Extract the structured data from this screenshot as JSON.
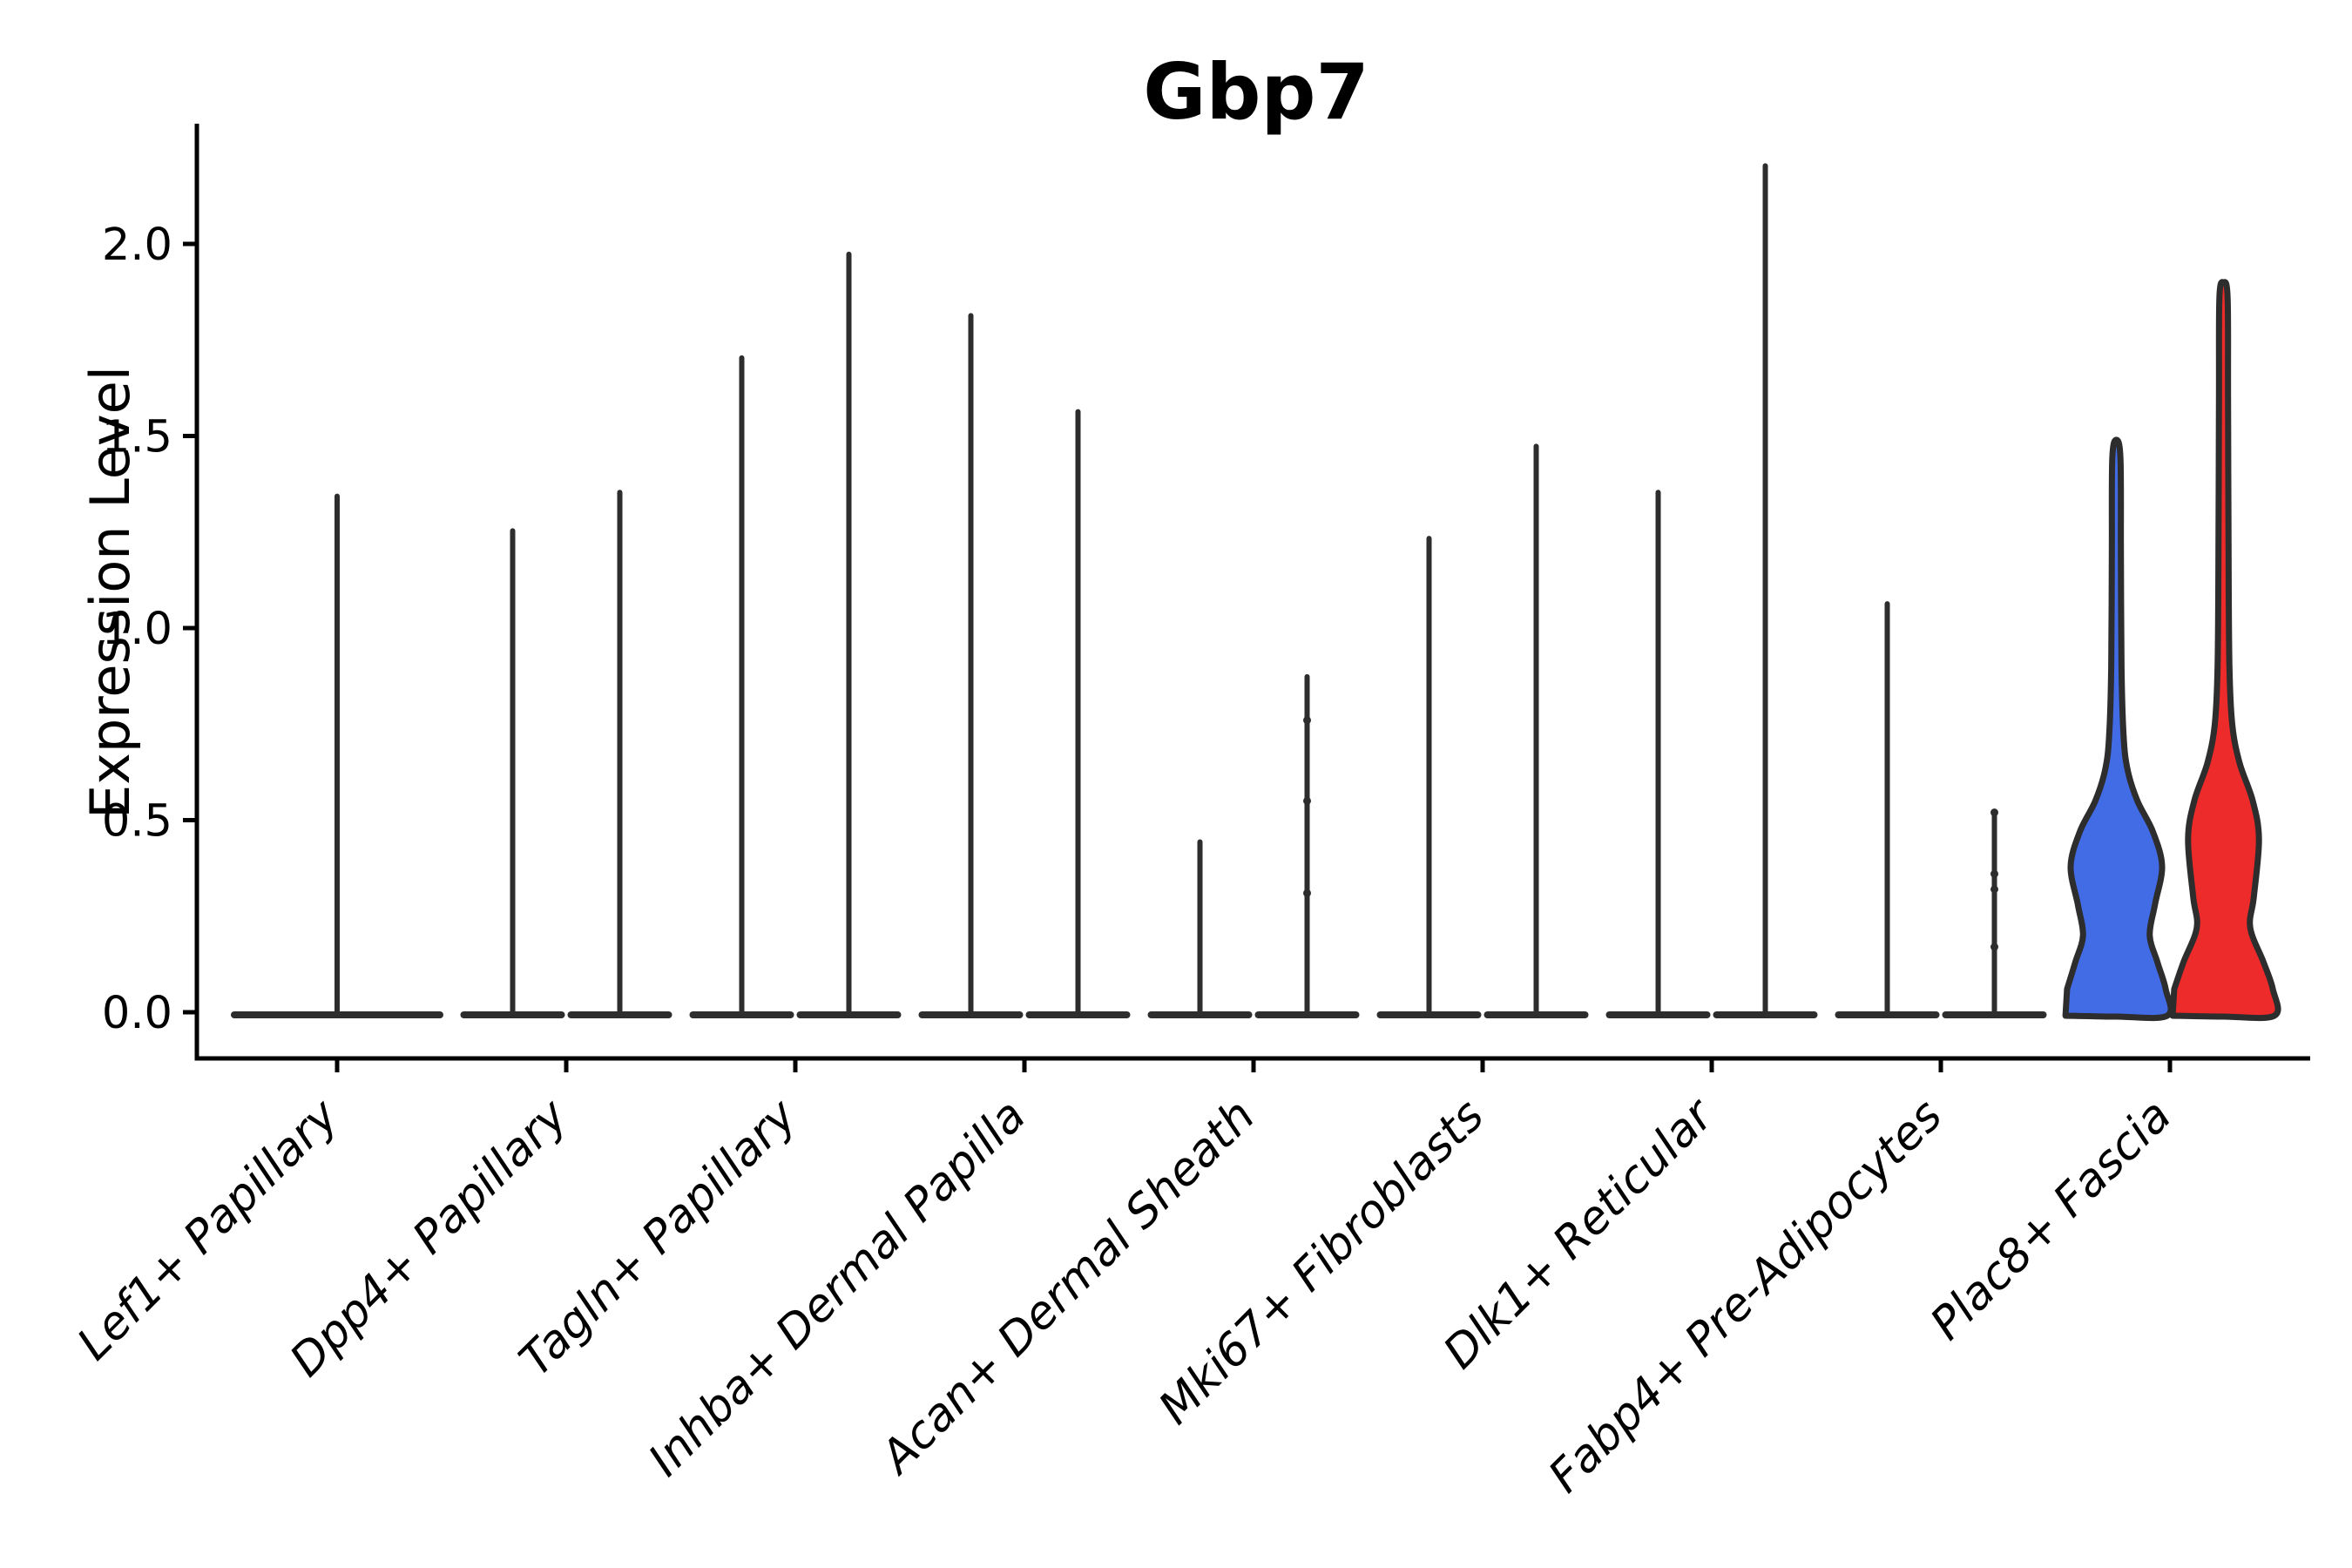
{
  "page": {
    "background": "#ffffff"
  },
  "chart_data": {
    "type": "violin",
    "title": "Gbp7",
    "ylabel": "Expression Level",
    "xlabel": "",
    "ytick_labels": [
      "0.0",
      "0.5",
      "1.0",
      "1.5",
      "2.0"
    ],
    "ytick_values": [
      0.0,
      0.5,
      1.0,
      1.5,
      2.0
    ],
    "ylim": [
      -0.12,
      2.31
    ],
    "grid": false,
    "legend": "none",
    "x_tick_style": "italic, rotated 45deg, anchored right",
    "colors": {
      "fascia_left": "#426BE6",
      "fascia_right": "#EE2B2B",
      "line": "#2D2D2D",
      "axis": "#000000"
    },
    "categories": [
      "Lef1+ Papillary",
      "Dpp4+ Papillary",
      "Tagln+ Papillary",
      "Inhba+ Dermal Papilla",
      "Acan+ Dermal Sheath",
      "Mki67+ Fibroblasts",
      "Dlk1+ Reticular",
      "Fabp4+ Pre-Adipocytes",
      "Plac8+ Fascia"
    ],
    "violins": [
      {
        "category": "Lef1+ Papillary",
        "cells": [
          {
            "pos": "center",
            "style": "flat-spike",
            "max": 1.35
          }
        ]
      },
      {
        "category": "Dpp4+ Papillary",
        "cells": [
          {
            "pos": "left",
            "style": "flat-spike",
            "max": 1.26
          },
          {
            "pos": "right",
            "style": "flat-spike",
            "max": 1.36
          }
        ]
      },
      {
        "category": "Tagln+ Papillary",
        "cells": [
          {
            "pos": "left",
            "style": "flat-spike",
            "max": 1.71
          },
          {
            "pos": "right",
            "style": "flat-spike",
            "max": 1.98
          }
        ]
      },
      {
        "category": "Inhba+ Dermal Papilla",
        "cells": [
          {
            "pos": "left",
            "style": "flat-spike",
            "max": 1.82
          },
          {
            "pos": "right",
            "style": "flat-spike",
            "max": 1.57
          }
        ]
      },
      {
        "category": "Acan+ Dermal Sheath",
        "cells": [
          {
            "pos": "left",
            "style": "flat-spike",
            "max": 0.45
          },
          {
            "pos": "right",
            "style": "flat-spike",
            "max": 0.88,
            "points": [
              0.76,
              0.55,
              0.31
            ]
          }
        ]
      },
      {
        "category": "Mki67+ Fibroblasts",
        "cells": [
          {
            "pos": "left",
            "style": "flat-spike",
            "max": 1.24
          },
          {
            "pos": "right",
            "style": "flat-spike",
            "max": 1.48
          }
        ]
      },
      {
        "category": "Dlk1+ Reticular",
        "cells": [
          {
            "pos": "left",
            "style": "flat-spike",
            "max": 1.36
          },
          {
            "pos": "right",
            "style": "flat-spike",
            "max": 2.21
          }
        ]
      },
      {
        "category": "Fabp4+ Pre-Adipocytes",
        "cells": [
          {
            "pos": "left",
            "style": "flat-spike",
            "max": 1.07
          },
          {
            "pos": "right",
            "style": "flat-spike",
            "max": 0.52,
            "points": [
              0.52,
              0.36,
              0.32,
              0.17
            ]
          }
        ]
      },
      {
        "category": "Plac8+ Fascia",
        "cells": [
          {
            "pos": "left",
            "style": "violin",
            "max": 1.49,
            "color_key": "fascia_left",
            "profile": [
              [
                0,
                0.99
              ],
              [
                0.06,
                0.96
              ],
              [
                0.13,
                0.8
              ],
              [
                0.2,
                0.65
              ],
              [
                0.28,
                0.75
              ],
              [
                0.38,
                0.89
              ],
              [
                0.47,
                0.71
              ],
              [
                0.55,
                0.41
              ],
              [
                0.63,
                0.22
              ],
              [
                0.72,
                0.14
              ],
              [
                0.9,
                0.1
              ],
              [
                1.2,
                0.088
              ],
              [
                1.44,
                0.08
              ],
              [
                1.49,
                0
              ]
            ]
          },
          {
            "pos": "right",
            "style": "violin",
            "max": 1.9,
            "color_key": "fascia_right",
            "profile": [
              [
                0,
                0.99
              ],
              [
                0.06,
                0.96
              ],
              [
                0.13,
                0.78
              ],
              [
                0.22,
                0.52
              ],
              [
                0.3,
                0.59
              ],
              [
                0.45,
                0.69
              ],
              [
                0.55,
                0.57
              ],
              [
                0.65,
                0.31
              ],
              [
                0.75,
                0.17
              ],
              [
                0.9,
                0.115
              ],
              [
                1.2,
                0.098
              ],
              [
                1.6,
                0.088
              ],
              [
                1.86,
                0.08
              ],
              [
                1.9,
                0
              ]
            ]
          }
        ]
      }
    ]
  }
}
